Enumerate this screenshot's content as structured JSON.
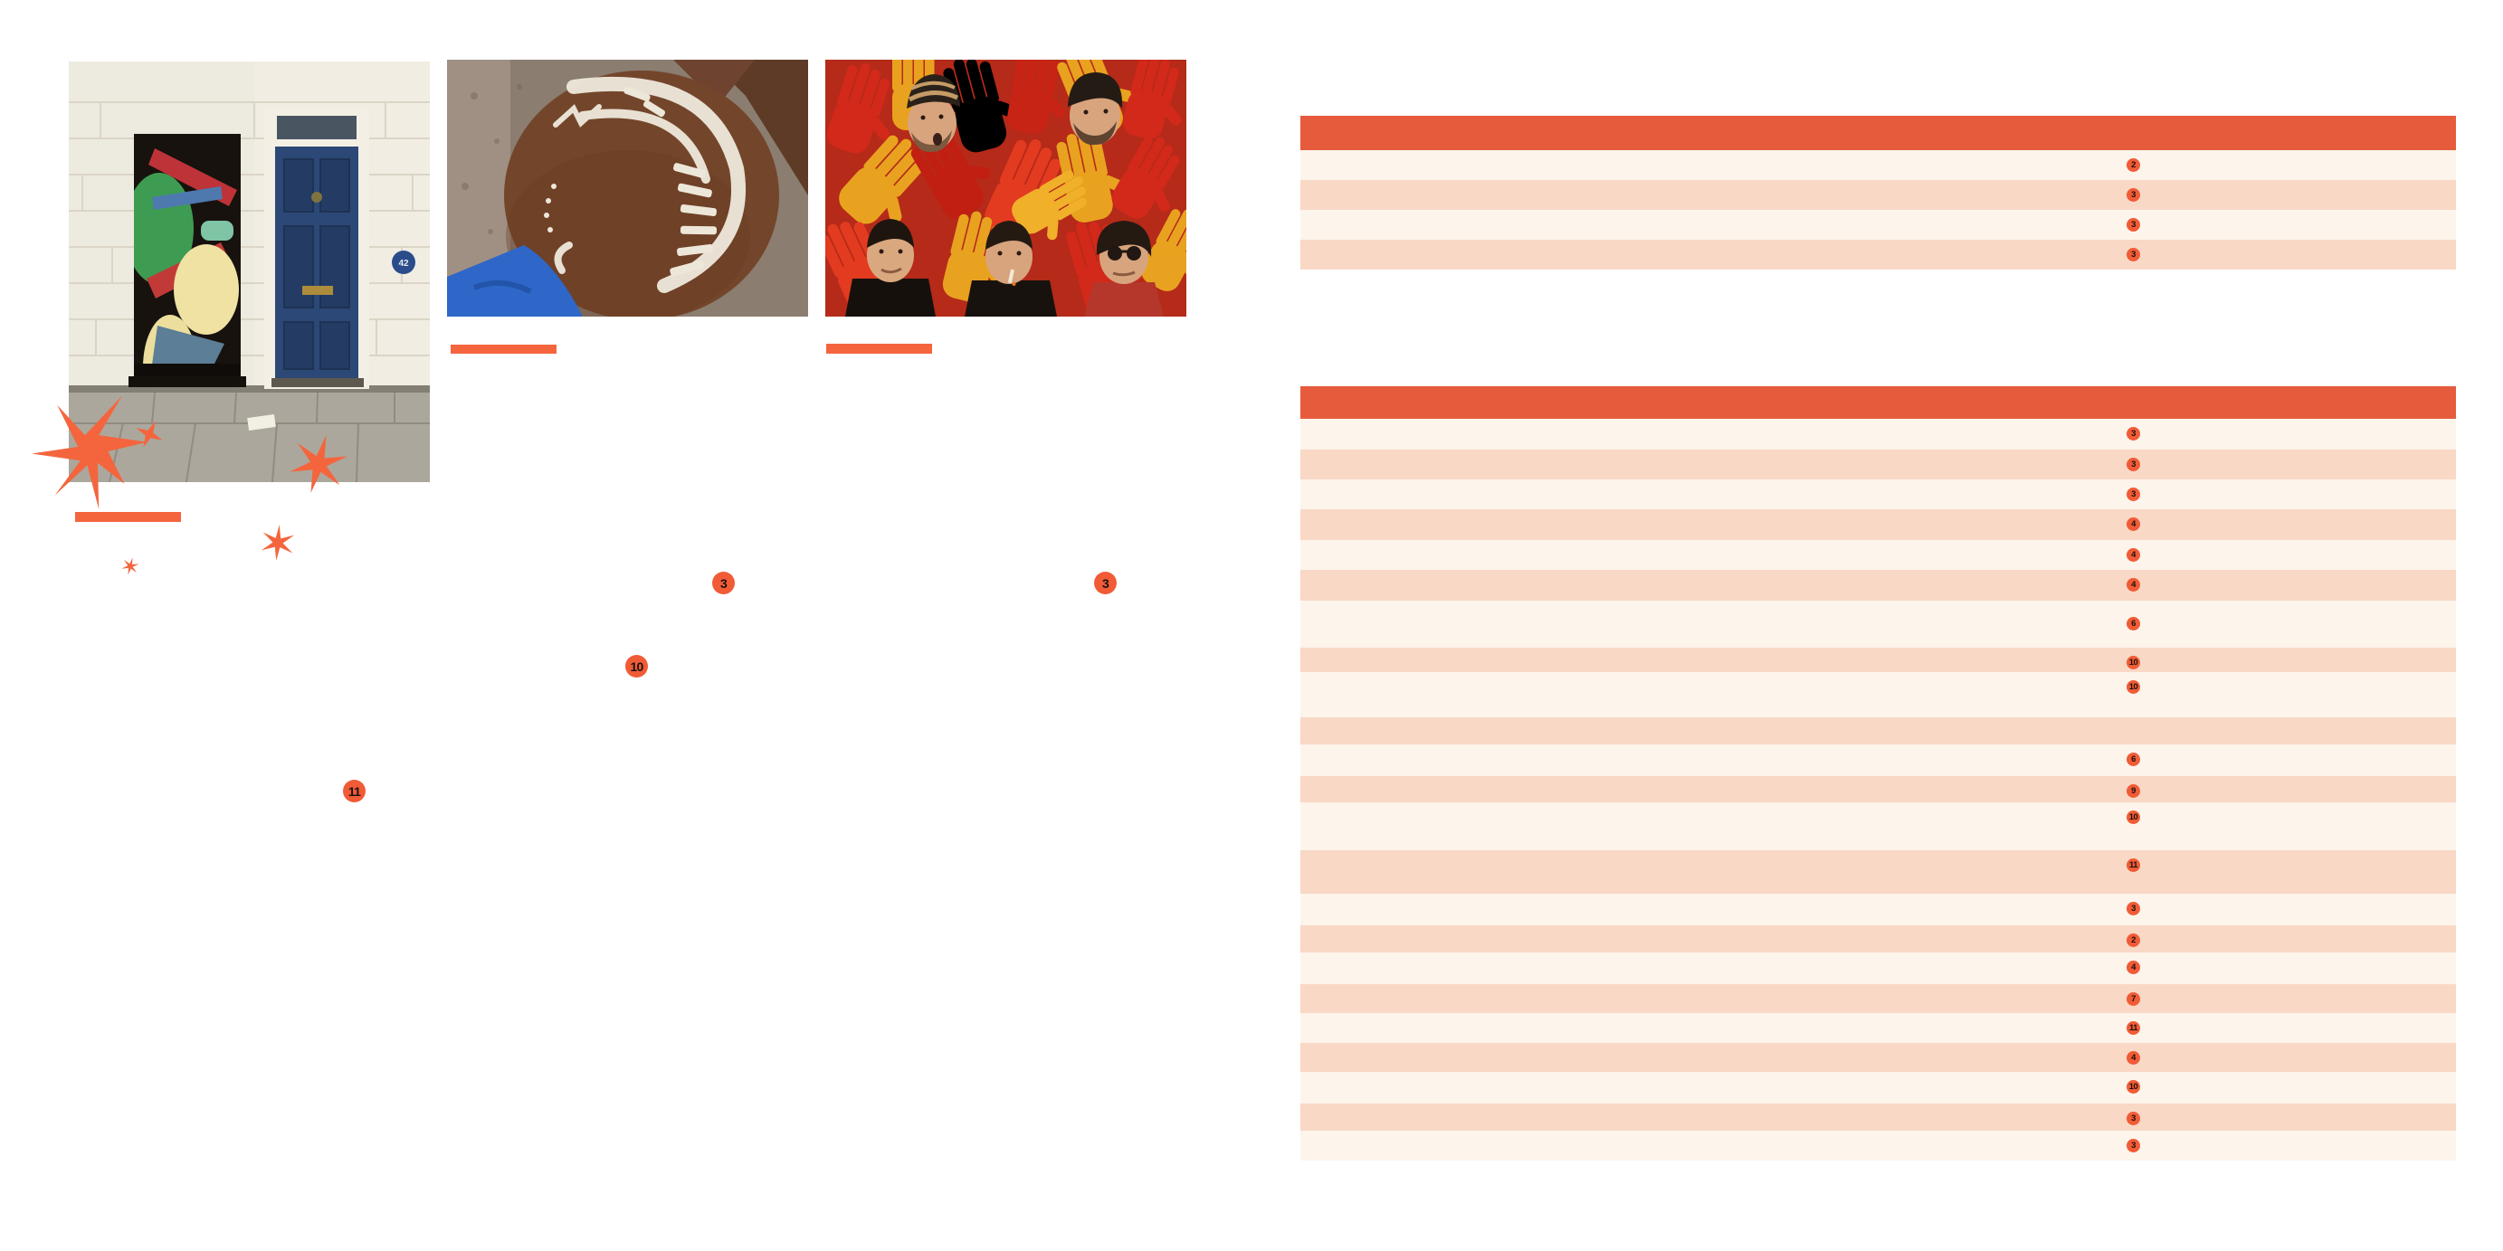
{
  "colors": {
    "page_bg": "#FFFFFF",
    "table_header": "#E55B3C",
    "row_light": "#FDF4EB",
    "row_dark": "#F9D8C6",
    "accent": "#F4653E",
    "badge": "#F15B36",
    "badge_number": "#17120E"
  },
  "left_page": {
    "photos": [
      {
        "label": "performers-stacked-in-doorway",
        "plaque_number": "42"
      },
      {
        "label": "shaved-head-with-white-painted-pattern"
      },
      {
        "label": "five-musicians-among-red-and-yellow-gloves"
      }
    ],
    "callouts": [
      {
        "number": "3"
      },
      {
        "number": "3"
      },
      {
        "number": "10"
      },
      {
        "number": "11"
      }
    ]
  },
  "right_page": {
    "tables": [
      {
        "rows": [
          {
            "num": "2"
          },
          {
            "num": "3"
          },
          {
            "num": "3"
          },
          {
            "num": "3"
          }
        ]
      },
      {
        "rows": [
          {
            "num": "3"
          },
          {
            "num": "3"
          },
          {
            "num": "3"
          },
          {
            "num": "4"
          },
          {
            "num": "4"
          },
          {
            "num": "4"
          },
          {
            "num": "6"
          },
          {
            "num": "10"
          },
          {
            "num": "10"
          },
          {
            "num": ""
          },
          {
            "num": "6"
          },
          {
            "num": "9"
          },
          {
            "num": "10"
          },
          {
            "num": "11"
          },
          {
            "num": "3"
          },
          {
            "num": "2"
          },
          {
            "num": "4"
          },
          {
            "num": "7"
          },
          {
            "num": "11"
          },
          {
            "num": "4"
          },
          {
            "num": "10"
          },
          {
            "num": "3"
          },
          {
            "num": "3"
          }
        ]
      }
    ]
  }
}
